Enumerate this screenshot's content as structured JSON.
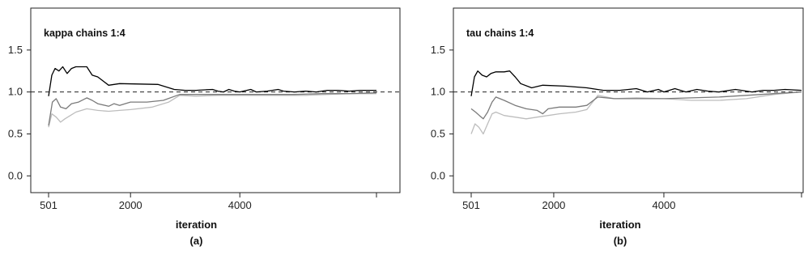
{
  "chart_data": [
    {
      "type": "line",
      "title": "kappa chains 1:4",
      "xlabel": "iteration",
      "caption": "(a)",
      "ylabel": "",
      "xlim": [
        501,
        6500
      ],
      "ylim": [
        -0.2,
        2.0
      ],
      "yticks": [
        0.0,
        0.5,
        1.0,
        1.5
      ],
      "ytick_labels": [
        "0.0",
        "0.5",
        "1.0",
        "1.5"
      ],
      "xticks": [
        501,
        2000,
        4000,
        6500
      ],
      "xtick_labels": [
        "501",
        "2000",
        "4000",
        ""
      ],
      "reference_line": 1.0,
      "series": [
        {
          "color": "#000000",
          "points": [
            [
              501,
              0.95
            ],
            [
              560,
              1.2
            ],
            [
              620,
              1.28
            ],
            [
              690,
              1.25
            ],
            [
              760,
              1.3
            ],
            [
              840,
              1.22
            ],
            [
              920,
              1.28
            ],
            [
              1000,
              1.3
            ],
            [
              1200,
              1.3
            ],
            [
              1300,
              1.2
            ],
            [
              1400,
              1.18
            ],
            [
              1600,
              1.08
            ],
            [
              1800,
              1.1
            ],
            [
              2500,
              1.09
            ],
            [
              2800,
              1.03
            ],
            [
              3000,
              1.02
            ],
            [
              3200,
              1.02
            ],
            [
              3500,
              1.03
            ],
            [
              3600,
              1.01
            ],
            [
              3700,
              1.0
            ],
            [
              3800,
              1.03
            ],
            [
              3900,
              1.01
            ],
            [
              4000,
              1.0
            ],
            [
              4200,
              1.03
            ],
            [
              4300,
              1.0
            ],
            [
              4500,
              1.01
            ],
            [
              4700,
              1.03
            ],
            [
              4800,
              1.01
            ],
            [
              5000,
              1.0
            ],
            [
              5200,
              1.01
            ],
            [
              5400,
              1.0
            ],
            [
              5600,
              1.02
            ],
            [
              5800,
              1.02
            ],
            [
              6000,
              1.01
            ],
            [
              6200,
              1.02
            ],
            [
              6500,
              1.02
            ]
          ]
        },
        {
          "color": "#7a7a7a",
          "points": [
            [
              501,
              0.6
            ],
            [
              570,
              0.88
            ],
            [
              640,
              0.92
            ],
            [
              720,
              0.82
            ],
            [
              820,
              0.8
            ],
            [
              920,
              0.86
            ],
            [
              1050,
              0.88
            ],
            [
              1200,
              0.93
            ],
            [
              1300,
              0.9
            ],
            [
              1400,
              0.86
            ],
            [
              1600,
              0.83
            ],
            [
              1700,
              0.86
            ],
            [
              1800,
              0.84
            ],
            [
              2000,
              0.88
            ],
            [
              2300,
              0.88
            ],
            [
              2600,
              0.9
            ],
            [
              2900,
              0.97
            ],
            [
              3200,
              0.97
            ],
            [
              3600,
              0.97
            ],
            [
              4000,
              0.97
            ],
            [
              4400,
              0.97
            ],
            [
              5000,
              0.97
            ],
            [
              5500,
              0.98
            ],
            [
              6000,
              0.98
            ],
            [
              6500,
              0.99
            ]
          ]
        },
        {
          "color": "#bdbdbd",
          "points": [
            [
              501,
              0.58
            ],
            [
              560,
              0.74
            ],
            [
              640,
              0.7
            ],
            [
              720,
              0.64
            ],
            [
              800,
              0.68
            ],
            [
              900,
              0.72
            ],
            [
              1000,
              0.76
            ],
            [
              1200,
              0.8
            ],
            [
              1400,
              0.78
            ],
            [
              1600,
              0.77
            ],
            [
              1800,
              0.78
            ],
            [
              2000,
              0.79
            ],
            [
              2400,
              0.82
            ],
            [
              2700,
              0.88
            ],
            [
              2900,
              0.96
            ],
            [
              3200,
              0.95
            ],
            [
              3600,
              0.96
            ],
            [
              4000,
              0.96
            ],
            [
              4400,
              0.96
            ],
            [
              4800,
              0.96
            ],
            [
              5200,
              0.96
            ],
            [
              5600,
              0.97
            ],
            [
              6000,
              0.98
            ],
            [
              6500,
              0.98
            ]
          ]
        }
      ]
    },
    {
      "type": "line",
      "title": "tau chains 1:4",
      "xlabel": "iteration",
      "caption": "(b)",
      "ylabel": "",
      "xlim": [
        501,
        6500
      ],
      "ylim": [
        -0.2,
        2.0
      ],
      "yticks": [
        0.0,
        0.5,
        1.0,
        1.5
      ],
      "ytick_labels": [
        "0.0",
        "0.5",
        "1.0",
        "1.5"
      ],
      "xticks": [
        501,
        2000,
        4000,
        6500
      ],
      "xtick_labels": [
        "501",
        "2000",
        "4000",
        ""
      ],
      "reference_line": 1.0,
      "series": [
        {
          "color": "#000000",
          "points": [
            [
              501,
              0.95
            ],
            [
              560,
              1.18
            ],
            [
              620,
              1.25
            ],
            [
              700,
              1.2
            ],
            [
              780,
              1.18
            ],
            [
              860,
              1.22
            ],
            [
              950,
              1.24
            ],
            [
              1100,
              1.24
            ],
            [
              1200,
              1.25
            ],
            [
              1300,
              1.18
            ],
            [
              1400,
              1.1
            ],
            [
              1600,
              1.05
            ],
            [
              1800,
              1.08
            ],
            [
              2200,
              1.07
            ],
            [
              2600,
              1.05
            ],
            [
              2900,
              1.02
            ],
            [
              3200,
              1.02
            ],
            [
              3500,
              1.04
            ],
            [
              3700,
              1.0
            ],
            [
              3900,
              1.03
            ],
            [
              4000,
              1.0
            ],
            [
              4200,
              1.04
            ],
            [
              4400,
              1.0
            ],
            [
              4600,
              1.03
            ],
            [
              4800,
              1.01
            ],
            [
              5000,
              1.0
            ],
            [
              5300,
              1.03
            ],
            [
              5600,
              1.0
            ],
            [
              5800,
              1.02
            ],
            [
              6000,
              1.02
            ],
            [
              6200,
              1.03
            ],
            [
              6500,
              1.02
            ]
          ]
        },
        {
          "color": "#7a7a7a",
          "points": [
            [
              501,
              0.8
            ],
            [
              580,
              0.76
            ],
            [
              650,
              0.72
            ],
            [
              720,
              0.68
            ],
            [
              800,
              0.76
            ],
            [
              880,
              0.88
            ],
            [
              950,
              0.94
            ],
            [
              1100,
              0.9
            ],
            [
              1300,
              0.84
            ],
            [
              1500,
              0.8
            ],
            [
              1700,
              0.78
            ],
            [
              1800,
              0.74
            ],
            [
              1900,
              0.8
            ],
            [
              2100,
              0.82
            ],
            [
              2400,
              0.82
            ],
            [
              2600,
              0.84
            ],
            [
              2800,
              0.94
            ],
            [
              3100,
              0.92
            ],
            [
              3500,
              0.92
            ],
            [
              4000,
              0.92
            ],
            [
              4500,
              0.93
            ],
            [
              5000,
              0.94
            ],
            [
              5500,
              0.96
            ],
            [
              6000,
              0.98
            ],
            [
              6500,
              1.0
            ]
          ]
        },
        {
          "color": "#bdbdbd",
          "points": [
            [
              501,
              0.5
            ],
            [
              570,
              0.62
            ],
            [
              640,
              0.58
            ],
            [
              720,
              0.5
            ],
            [
              800,
              0.62
            ],
            [
              880,
              0.74
            ],
            [
              950,
              0.76
            ],
            [
              1100,
              0.72
            ],
            [
              1300,
              0.7
            ],
            [
              1500,
              0.68
            ],
            [
              1700,
              0.7
            ],
            [
              1900,
              0.72
            ],
            [
              2100,
              0.74
            ],
            [
              2400,
              0.76
            ],
            [
              2600,
              0.79
            ],
            [
              2800,
              0.96
            ],
            [
              3100,
              0.92
            ],
            [
              3500,
              0.93
            ],
            [
              4000,
              0.92
            ],
            [
              4500,
              0.9
            ],
            [
              5000,
              0.9
            ],
            [
              5500,
              0.92
            ],
            [
              6000,
              0.97
            ],
            [
              6500,
              1.0
            ]
          ]
        }
      ]
    }
  ]
}
